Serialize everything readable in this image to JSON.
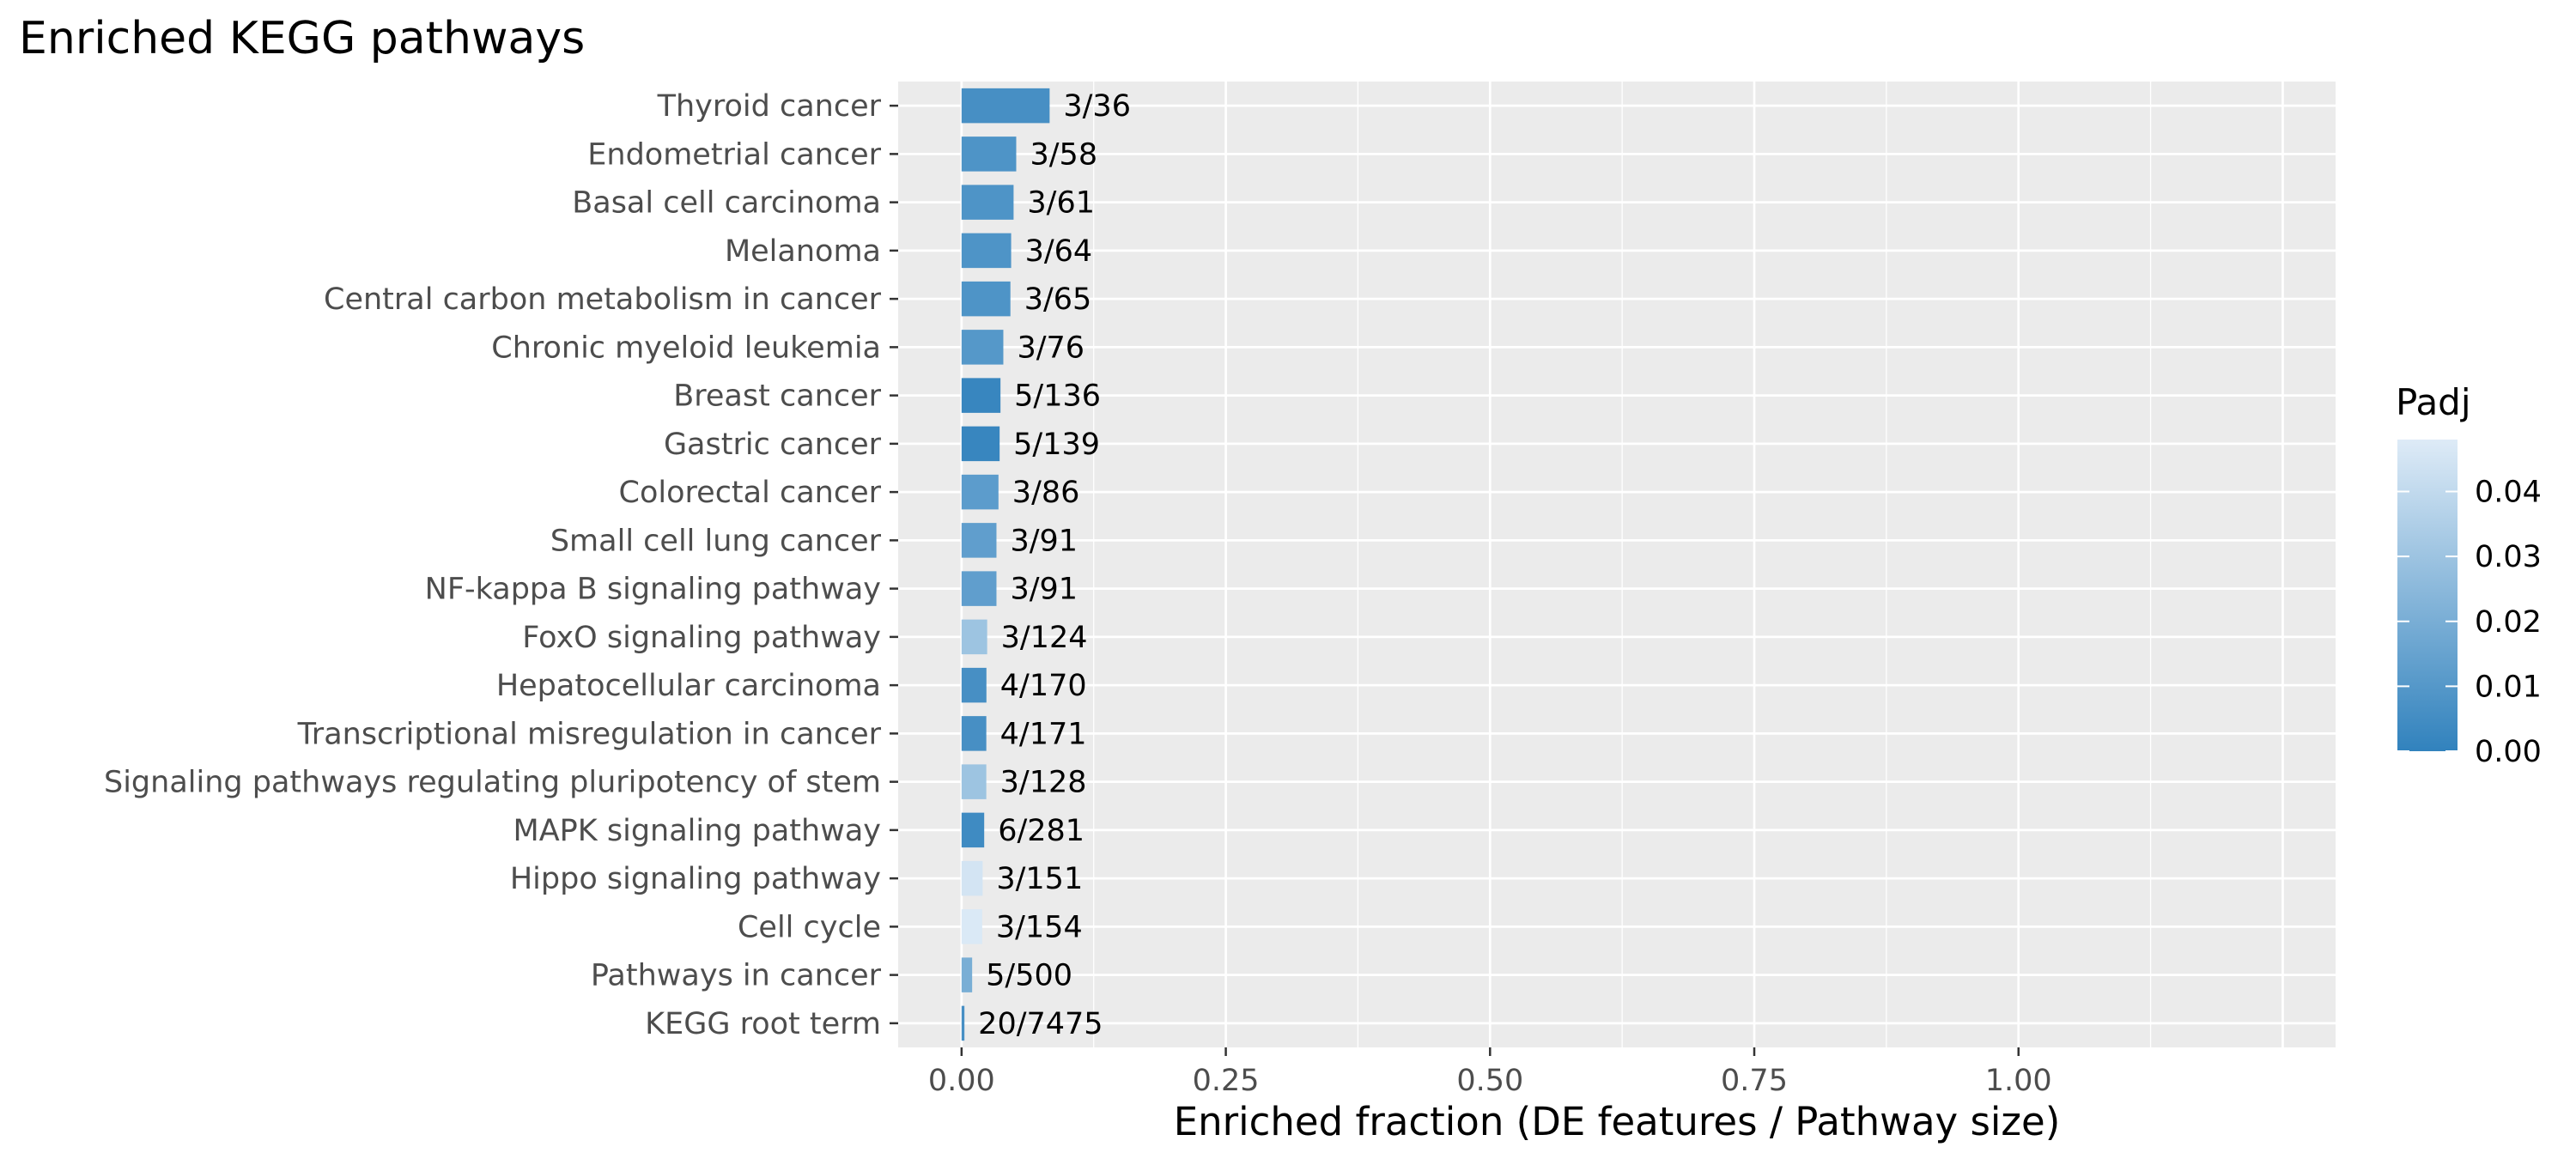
{
  "chart_data": {
    "type": "bar",
    "orientation": "horizontal",
    "title": "Enriched KEGG pathways",
    "xlabel": "Enriched fraction (DE features / Pathway size)",
    "ylabel": "",
    "xlim": [
      -0.06,
      1.3
    ],
    "xticks": [
      0.0,
      0.25,
      0.5,
      0.75,
      1.0
    ],
    "xtick_labels": [
      "0.00",
      "0.25",
      "0.50",
      "0.75",
      "1.00"
    ],
    "grid": true,
    "legend_position": "right",
    "categories": [
      "Thyroid cancer",
      "Endometrial cancer",
      "Basal cell carcinoma",
      "Melanoma",
      "Central carbon metabolism in cancer",
      "Chronic myeloid leukemia",
      "Breast cancer",
      "Gastric cancer",
      "Colorectal cancer",
      "Small cell lung cancer",
      "NF-kappa B signaling pathway",
      "FoxO signaling pathway",
      "Hepatocellular carcinoma",
      "Transcriptional misregulation in cancer",
      "Signaling pathways regulating pluripotency of stem",
      "MAPK signaling pathway",
      "Hippo signaling pathway",
      "Cell cycle",
      "Pathways in cancer",
      "KEGG root term"
    ],
    "values": [
      0.0833,
      0.0517,
      0.0492,
      0.0469,
      0.0462,
      0.0395,
      0.0368,
      0.036,
      0.0349,
      0.033,
      0.033,
      0.0242,
      0.0235,
      0.0234,
      0.0234,
      0.0214,
      0.0199,
      0.0195,
      0.01,
      0.0027
    ],
    "labels": [
      "3/36",
      "3/58",
      "3/61",
      "3/64",
      "3/65",
      "3/76",
      "5/136",
      "5/139",
      "3/86",
      "3/91",
      "3/91",
      "3/124",
      "4/170",
      "4/171",
      "3/128",
      "6/281",
      "3/151",
      "3/154",
      "5/500",
      "20/7475"
    ],
    "padj": [
      0.006,
      0.008,
      0.008,
      0.008,
      0.008,
      0.01,
      0.002,
      0.002,
      0.012,
      0.013,
      0.013,
      0.03,
      0.006,
      0.006,
      0.03,
      0.004,
      0.045,
      0.047,
      0.02,
      0.006
    ],
    "color_scale": {
      "title": "Padj",
      "min": 0.0,
      "max": 0.048,
      "low_color": "#3182bd",
      "high_color": "#deebf7",
      "ticks": [
        0.0,
        0.01,
        0.02,
        0.03,
        0.04
      ],
      "tick_labels": [
        "0.00",
        "0.01",
        "0.02",
        "0.03",
        "0.04"
      ]
    }
  },
  "colors": {
    "panel_background": "#ebebeb",
    "grid_major": "#ffffff",
    "tick_mark": "#333333",
    "tick_label": "#4d4d4d"
  }
}
